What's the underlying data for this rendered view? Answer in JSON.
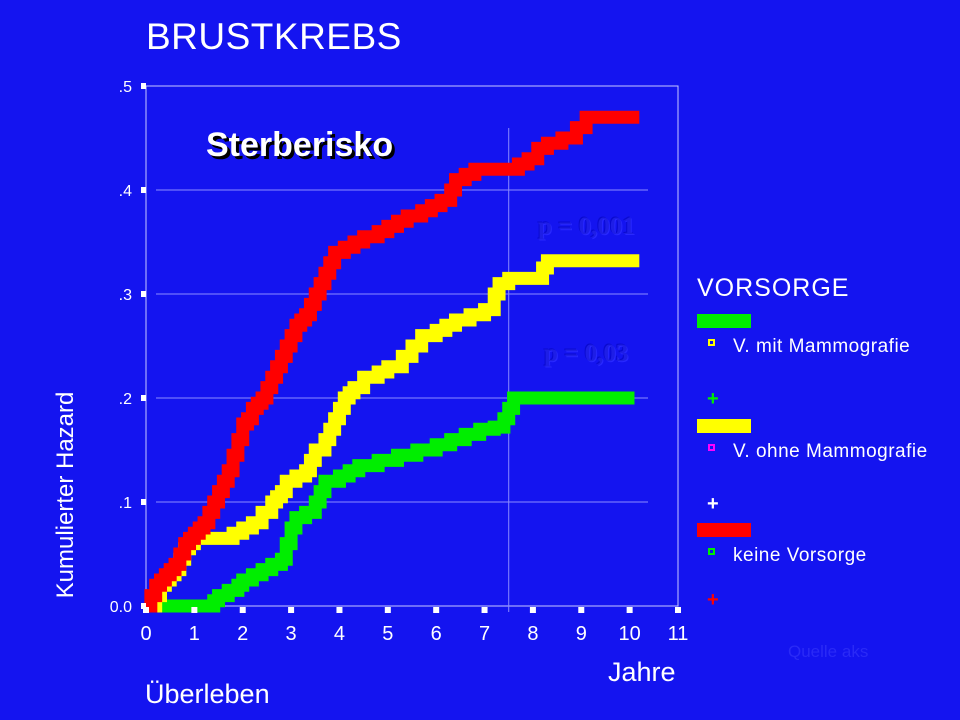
{
  "title": "BRUSTKREBS",
  "annotation": "Sterberisko",
  "p_values": [
    "p = 0,001",
    "p = 0,03"
  ],
  "source_note": "Quelle aks",
  "colors": {
    "background": "#1414f0",
    "mit_mammografie": "#00ee00",
    "ohne_mammografie": "#ffff00",
    "keine_vorsorge": "#ff0000",
    "axes": "#ffffff"
  },
  "legend": {
    "title": "VORSORGE",
    "items": [
      {
        "label": "V. mit Mammografie",
        "color": "#00ee00",
        "marker_color": "#ffff00",
        "plus_color": "#00ee00"
      },
      {
        "label": "V. ohne Mammografie",
        "color": "#ffff00",
        "marker_color": "#ff00ff",
        "plus_color": "#ffffff"
      },
      {
        "label": "keine Vorsorge",
        "color": "#ff0000",
        "marker_color": "#00ee00",
        "plus_color": "#ff0000"
      }
    ]
  },
  "chart_data": {
    "type": "line",
    "step": true,
    "xlabel": "Jahre",
    "xlabel2": "Überleben",
    "ylabel": "Kumulierter Hazard",
    "xlim": [
      0,
      11
    ],
    "ylim": [
      0,
      0.5
    ],
    "x_ticks": [
      "0",
      "1",
      "2",
      "3",
      "4",
      "5",
      "6",
      "7",
      "8",
      "9",
      "10",
      "11"
    ],
    "y_ticks": [
      "0.0",
      ".1",
      ".2",
      ".3",
      ".4",
      ".5"
    ],
    "y_tick_values": [
      0,
      0.1,
      0.2,
      0.3,
      0.4,
      0.5
    ],
    "gridlines_y": [
      0.1,
      0.2,
      0.3,
      0.4
    ],
    "reference_line_x": 7.5,
    "series": [
      {
        "name": "V. mit Mammografie",
        "color": "#00ee00",
        "points": [
          [
            0,
            0
          ],
          [
            0.5,
            0
          ],
          [
            1.0,
            0
          ],
          [
            1.4,
            0.005
          ],
          [
            1.5,
            0.01
          ],
          [
            1.7,
            0.015
          ],
          [
            1.9,
            0.02
          ],
          [
            2.0,
            0.025
          ],
          [
            2.2,
            0.03
          ],
          [
            2.4,
            0.035
          ],
          [
            2.6,
            0.04
          ],
          [
            2.8,
            0.045
          ],
          [
            2.9,
            0.06
          ],
          [
            3.0,
            0.075
          ],
          [
            3.1,
            0.085
          ],
          [
            3.3,
            0.09
          ],
          [
            3.5,
            0.1
          ],
          [
            3.6,
            0.11
          ],
          [
            3.7,
            0.12
          ],
          [
            4.0,
            0.125
          ],
          [
            4.2,
            0.13
          ],
          [
            4.4,
            0.135
          ],
          [
            4.8,
            0.14
          ],
          [
            5.2,
            0.145
          ],
          [
            5.6,
            0.15
          ],
          [
            6.0,
            0.155
          ],
          [
            6.3,
            0.16
          ],
          [
            6.6,
            0.165
          ],
          [
            6.9,
            0.17
          ],
          [
            7.2,
            0.172
          ],
          [
            7.4,
            0.18
          ],
          [
            7.5,
            0.19
          ],
          [
            7.6,
            0.2
          ],
          [
            8.0,
            0.2
          ],
          [
            9.0,
            0.2
          ],
          [
            10.0,
            0.2
          ],
          [
            10.1,
            0.2
          ]
        ]
      },
      {
        "name": "V. ohne Mammografie",
        "color": "#ffff00",
        "points": [
          [
            0,
            0
          ],
          [
            0.2,
            0.01
          ],
          [
            0.3,
            0.02
          ],
          [
            0.4,
            0.025
          ],
          [
            0.5,
            0.03
          ],
          [
            0.6,
            0.035
          ],
          [
            0.7,
            0.045
          ],
          [
            0.8,
            0.055
          ],
          [
            0.9,
            0.06
          ],
          [
            1.0,
            0.065
          ],
          [
            1.5,
            0.065
          ],
          [
            1.8,
            0.07
          ],
          [
            2.0,
            0.075
          ],
          [
            2.2,
            0.08
          ],
          [
            2.4,
            0.09
          ],
          [
            2.6,
            0.1
          ],
          [
            2.7,
            0.105
          ],
          [
            2.8,
            0.11
          ],
          [
            2.9,
            0.12
          ],
          [
            3.1,
            0.125
          ],
          [
            3.3,
            0.13
          ],
          [
            3.4,
            0.14
          ],
          [
            3.5,
            0.15
          ],
          [
            3.7,
            0.16
          ],
          [
            3.8,
            0.17
          ],
          [
            3.9,
            0.18
          ],
          [
            4.0,
            0.19
          ],
          [
            4.1,
            0.2
          ],
          [
            4.2,
            0.205
          ],
          [
            4.3,
            0.21
          ],
          [
            4.5,
            0.22
          ],
          [
            4.8,
            0.225
          ],
          [
            5.0,
            0.23
          ],
          [
            5.3,
            0.24
          ],
          [
            5.5,
            0.25
          ],
          [
            5.7,
            0.26
          ],
          [
            6.0,
            0.265
          ],
          [
            6.2,
            0.27
          ],
          [
            6.4,
            0.275
          ],
          [
            6.7,
            0.28
          ],
          [
            7.0,
            0.285
          ],
          [
            7.2,
            0.3
          ],
          [
            7.3,
            0.31
          ],
          [
            7.5,
            0.315
          ],
          [
            8.0,
            0.315
          ],
          [
            8.2,
            0.325
          ],
          [
            8.3,
            0.332
          ],
          [
            9.0,
            0.332
          ],
          [
            10.0,
            0.332
          ],
          [
            10.2,
            0.332
          ]
        ]
      },
      {
        "name": "keine Vorsorge",
        "color": "#ff0000",
        "points": [
          [
            0,
            0
          ],
          [
            0.1,
            0.01
          ],
          [
            0.2,
            0.02
          ],
          [
            0.3,
            0.025
          ],
          [
            0.4,
            0.03
          ],
          [
            0.5,
            0.035
          ],
          [
            0.6,
            0.04
          ],
          [
            0.7,
            0.05
          ],
          [
            0.8,
            0.06
          ],
          [
            0.9,
            0.065
          ],
          [
            1.0,
            0.07
          ],
          [
            1.1,
            0.075
          ],
          [
            1.2,
            0.08
          ],
          [
            1.3,
            0.09
          ],
          [
            1.4,
            0.1
          ],
          [
            1.5,
            0.11
          ],
          [
            1.6,
            0.12
          ],
          [
            1.7,
            0.13
          ],
          [
            1.8,
            0.145
          ],
          [
            1.9,
            0.16
          ],
          [
            2.0,
            0.175
          ],
          [
            2.1,
            0.18
          ],
          [
            2.2,
            0.19
          ],
          [
            2.3,
            0.195
          ],
          [
            2.4,
            0.2
          ],
          [
            2.5,
            0.21
          ],
          [
            2.6,
            0.22
          ],
          [
            2.7,
            0.23
          ],
          [
            2.8,
            0.24
          ],
          [
            2.9,
            0.25
          ],
          [
            3.0,
            0.26
          ],
          [
            3.1,
            0.27
          ],
          [
            3.2,
            0.275
          ],
          [
            3.3,
            0.28
          ],
          [
            3.4,
            0.29
          ],
          [
            3.5,
            0.3
          ],
          [
            3.6,
            0.31
          ],
          [
            3.7,
            0.32
          ],
          [
            3.8,
            0.33
          ],
          [
            3.9,
            0.34
          ],
          [
            4.1,
            0.345
          ],
          [
            4.3,
            0.35
          ],
          [
            4.5,
            0.355
          ],
          [
            4.8,
            0.36
          ],
          [
            5.0,
            0.365
          ],
          [
            5.2,
            0.37
          ],
          [
            5.4,
            0.375
          ],
          [
            5.7,
            0.38
          ],
          [
            5.9,
            0.385
          ],
          [
            6.1,
            0.39
          ],
          [
            6.3,
            0.4
          ],
          [
            6.4,
            0.41
          ],
          [
            6.6,
            0.415
          ],
          [
            6.8,
            0.42
          ],
          [
            7.0,
            0.42
          ],
          [
            7.5,
            0.42
          ],
          [
            7.7,
            0.425
          ],
          [
            7.9,
            0.43
          ],
          [
            8.1,
            0.44
          ],
          [
            8.3,
            0.445
          ],
          [
            8.6,
            0.45
          ],
          [
            8.9,
            0.46
          ],
          [
            9.1,
            0.47
          ],
          [
            9.5,
            0.47
          ],
          [
            10.0,
            0.47
          ],
          [
            10.2,
            0.47
          ]
        ]
      }
    ]
  }
}
